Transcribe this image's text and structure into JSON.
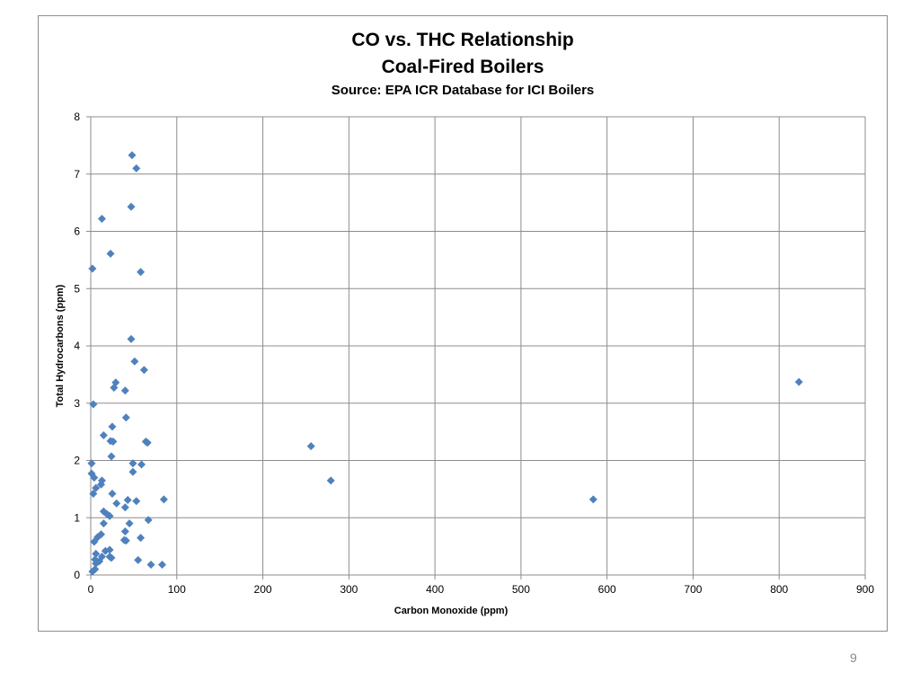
{
  "page_number": "9",
  "chart_data": {
    "type": "scatter",
    "title": "CO vs. THC Relationship",
    "title_line2": "Coal-Fired Boilers",
    "subtitle": "Source:  EPA ICR Database for ICI Boilers",
    "xlabel": "Carbon Monoxide (ppm)",
    "ylabel": "Total Hydrocarbons (ppm)",
    "xlim": [
      0,
      900
    ],
    "ylim": [
      0,
      8
    ],
    "xticks": [
      0,
      100,
      200,
      300,
      400,
      500,
      600,
      700,
      800,
      900
    ],
    "yticks": [
      0,
      1,
      2,
      3,
      4,
      5,
      6,
      7,
      8
    ],
    "grid": true,
    "legend": "none",
    "marker_color": "#4f81bd",
    "marker": "diamond",
    "points": [
      [
        48,
        7.33
      ],
      [
        53,
        7.1
      ],
      [
        47,
        6.43
      ],
      [
        13,
        6.22
      ],
      [
        23,
        5.61
      ],
      [
        2,
        5.35
      ],
      [
        58,
        5.29
      ],
      [
        47,
        4.12
      ],
      [
        51,
        3.73
      ],
      [
        62,
        3.58
      ],
      [
        29,
        3.36
      ],
      [
        27,
        3.27
      ],
      [
        40,
        3.22
      ],
      [
        3,
        2.98
      ],
      [
        41,
        2.75
      ],
      [
        25,
        2.59
      ],
      [
        15,
        2.44
      ],
      [
        23,
        2.34
      ],
      [
        26,
        2.33
      ],
      [
        64,
        2.33
      ],
      [
        66,
        2.31
      ],
      [
        24,
        2.07
      ],
      [
        1,
        1.95
      ],
      [
        49,
        1.95
      ],
      [
        59,
        1.93
      ],
      [
        49,
        1.8
      ],
      [
        1,
        1.77
      ],
      [
        4,
        1.7
      ],
      [
        13,
        1.65
      ],
      [
        12,
        1.58
      ],
      [
        6,
        1.52
      ],
      [
        3,
        1.42
      ],
      [
        25,
        1.42
      ],
      [
        43,
        1.31
      ],
      [
        85,
        1.32
      ],
      [
        53,
        1.29
      ],
      [
        30,
        1.25
      ],
      [
        40,
        1.18
      ],
      [
        15,
        1.11
      ],
      [
        19,
        1.06
      ],
      [
        22,
        1.03
      ],
      [
        67,
        0.96
      ],
      [
        15,
        0.9
      ],
      [
        45,
        0.9
      ],
      [
        40,
        0.76
      ],
      [
        12,
        0.71
      ],
      [
        8,
        0.66
      ],
      [
        58,
        0.65
      ],
      [
        39,
        0.61
      ],
      [
        41,
        0.6
      ],
      [
        4,
        0.58
      ],
      [
        22,
        0.44
      ],
      [
        17,
        0.42
      ],
      [
        6,
        0.37
      ],
      [
        13,
        0.32
      ],
      [
        22,
        0.32
      ],
      [
        24,
        0.3
      ],
      [
        5,
        0.27
      ],
      [
        10,
        0.24
      ],
      [
        6,
        0.2
      ],
      [
        55,
        0.26
      ],
      [
        70,
        0.18
      ],
      [
        83,
        0.18
      ],
      [
        5,
        0.1
      ],
      [
        2,
        0.06
      ],
      [
        256,
        2.25
      ],
      [
        279,
        1.65
      ],
      [
        584,
        1.32
      ],
      [
        823,
        3.37
      ]
    ]
  }
}
